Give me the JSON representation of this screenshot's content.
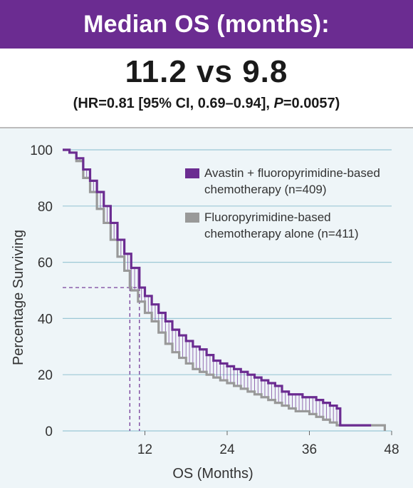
{
  "header": {
    "title": "Median OS (months):",
    "headline": "11.2 vs 9.8",
    "stats_prefix": "(HR=0.81 [95% CI, 0.69–0.94], ",
    "stats_p_label": "P",
    "stats_suffix": "=0.0057)"
  },
  "colors": {
    "banner": "#6b2c91",
    "avastin": "#6b2c91",
    "fluoro": "#999999",
    "panel": "#eef5f8",
    "grid": "#9cc8d6"
  },
  "chart_data": {
    "type": "line",
    "title": "",
    "xlabel": "OS (Months)",
    "ylabel": "Percentage Surviving",
    "xlim": [
      0,
      48
    ],
    "ylim": [
      0,
      100
    ],
    "x_ticks": [
      12,
      24,
      36,
      48
    ],
    "y_ticks": [
      0,
      20,
      40,
      60,
      80,
      100
    ],
    "grid": "horizontal",
    "legend_position": "top-right",
    "medians": [
      11.2,
      9.8
    ],
    "median_level": 51,
    "series": [
      {
        "name": "Avastin + fluoropyrimidine-based chemotherapy (n=409)",
        "color": "#6b2c91",
        "points": [
          [
            0,
            100
          ],
          [
            0.5,
            100
          ],
          [
            1,
            99
          ],
          [
            2,
            97
          ],
          [
            3,
            93
          ],
          [
            4,
            89
          ],
          [
            5,
            85
          ],
          [
            6,
            80
          ],
          [
            7,
            74
          ],
          [
            8,
            68
          ],
          [
            9,
            63
          ],
          [
            10,
            58
          ],
          [
            11.2,
            51
          ],
          [
            12,
            48
          ],
          [
            13,
            45
          ],
          [
            14,
            42
          ],
          [
            15,
            39
          ],
          [
            16,
            36
          ],
          [
            17,
            34
          ],
          [
            18,
            32
          ],
          [
            19,
            30
          ],
          [
            20,
            29
          ],
          [
            21,
            27
          ],
          [
            22,
            25
          ],
          [
            23,
            24
          ],
          [
            24,
            23
          ],
          [
            25,
            22
          ],
          [
            26,
            21
          ],
          [
            27,
            20
          ],
          [
            28,
            19
          ],
          [
            29,
            18
          ],
          [
            30,
            17
          ],
          [
            31,
            16
          ],
          [
            32,
            14
          ],
          [
            33,
            13
          ],
          [
            34,
            13
          ],
          [
            35,
            12
          ],
          [
            36,
            12
          ],
          [
            37,
            11
          ],
          [
            38,
            10
          ],
          [
            39,
            9
          ],
          [
            40,
            8
          ],
          [
            40.5,
            2
          ],
          [
            45,
            2
          ]
        ]
      },
      {
        "name": "Fluoropyrimidine-based chemotherapy alone (n=411)",
        "color": "#999999",
        "points": [
          [
            0,
            100
          ],
          [
            0.5,
            100
          ],
          [
            1,
            99
          ],
          [
            2,
            96
          ],
          [
            3,
            90
          ],
          [
            4,
            85
          ],
          [
            5,
            79
          ],
          [
            6,
            74
          ],
          [
            7,
            68
          ],
          [
            8,
            62
          ],
          [
            9,
            57
          ],
          [
            9.8,
            51
          ],
          [
            10,
            50
          ],
          [
            11,
            46
          ],
          [
            12,
            42
          ],
          [
            13,
            39
          ],
          [
            14,
            35
          ],
          [
            15,
            31
          ],
          [
            16,
            28
          ],
          [
            17,
            26
          ],
          [
            18,
            24
          ],
          [
            19,
            22
          ],
          [
            20,
            21
          ],
          [
            21,
            20
          ],
          [
            22,
            19
          ],
          [
            23,
            18
          ],
          [
            24,
            17
          ],
          [
            25,
            16
          ],
          [
            26,
            15
          ],
          [
            27,
            14
          ],
          [
            28,
            13
          ],
          [
            29,
            12
          ],
          [
            30,
            11
          ],
          [
            31,
            10
          ],
          [
            32,
            9
          ],
          [
            33,
            8
          ],
          [
            34,
            7
          ],
          [
            35,
            7
          ],
          [
            36,
            6
          ],
          [
            37,
            5
          ],
          [
            38,
            4
          ],
          [
            39,
            3
          ],
          [
            40,
            2
          ],
          [
            47,
            2
          ],
          [
            47,
            0
          ]
        ]
      }
    ]
  }
}
